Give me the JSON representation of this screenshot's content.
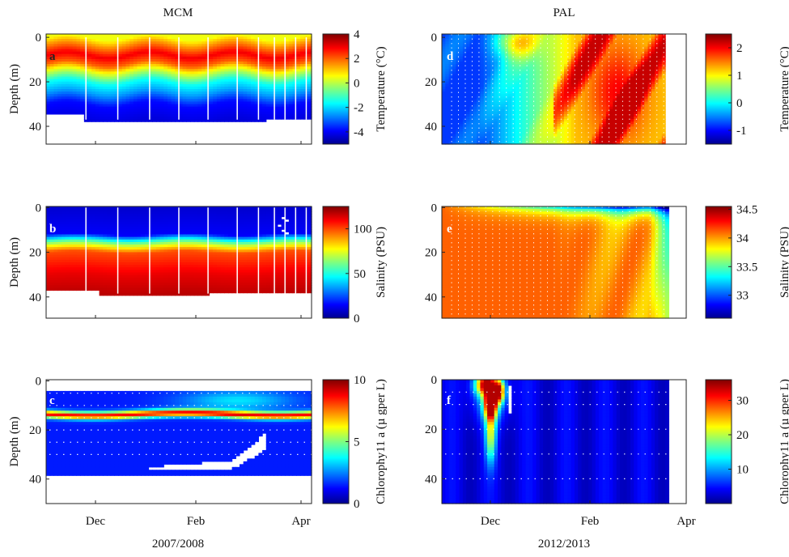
{
  "column_titles": [
    "MCM",
    "PAL"
  ],
  "x_period_labels": [
    "2007/2008",
    "2012/2013"
  ],
  "chart_data": [
    {
      "type": "heatmap",
      "panel": "a",
      "column": "MCM",
      "ylabel": "Depth (m)",
      "yticks": [
        "0",
        "20",
        "40"
      ],
      "ylim": [
        -1.5,
        48
      ],
      "y_reversed": true,
      "xticks": [
        "Dec",
        "Feb",
        "Apr"
      ],
      "show_xticklabels": false,
      "colorbar": {
        "label": "Temperature (°C)",
        "range": [
          -5,
          4
        ],
        "ticks": [
          "4",
          "2",
          "0",
          "-2",
          "-4"
        ],
        "colormap": "jet"
      },
      "depth_profile": {
        "depth": [
          0,
          3,
          8,
          12,
          15,
          20,
          25,
          30,
          38
        ],
        "value": [
          0.5,
          1.5,
          3.0,
          2.0,
          0.5,
          -1.5,
          -2.5,
          -3.8,
          -4.2
        ]
      }
    },
    {
      "type": "heatmap",
      "panel": "b",
      "column": "MCM",
      "ylabel": "Depth (m)",
      "yticks": [
        "0",
        "20",
        "40"
      ],
      "ylim": [
        -0.5,
        49.5
      ],
      "y_reversed": true,
      "xticks": [
        "Dec",
        "Feb",
        "Apr"
      ],
      "show_xticklabels": false,
      "colorbar": {
        "label": "Salinity (PSU)",
        "range": [
          0,
          125
        ],
        "ticks": [
          "100",
          "50",
          "0"
        ],
        "colormap": "jet"
      },
      "depth_profile": {
        "depth": [
          0,
          12,
          15,
          17,
          20,
          30,
          39
        ],
        "value": [
          10,
          15,
          55,
          75,
          100,
          112,
          118
        ]
      }
    },
    {
      "type": "heatmap",
      "panel": "c",
      "column": "MCM",
      "ylabel": "Depth (m)",
      "yticks": [
        "0",
        "20",
        "40"
      ],
      "ylim": [
        -0.5,
        50
      ],
      "y_reversed": true,
      "xticks": [
        "Dec",
        "Feb",
        "Apr"
      ],
      "show_xticklabels": true,
      "colorbar": {
        "label": "Chlorophy11 a (µ gper L)",
        "range": [
          0,
          10
        ],
        "ticks": [
          "10",
          "5",
          "0"
        ],
        "colormap": "jet"
      },
      "depth_profile": {
        "depth": [
          5,
          10,
          13.5,
          17,
          38
        ],
        "value": [
          1.5,
          2,
          9,
          2,
          1.5
        ]
      }
    },
    {
      "type": "heatmap",
      "panel": "d",
      "column": "PAL",
      "ylabel": "",
      "yticks": [
        "0",
        "20",
        "40"
      ],
      "ylim": [
        -1.5,
        48
      ],
      "y_reversed": true,
      "xticks": [
        "Dec",
        "Feb",
        "Apr"
      ],
      "show_xticklabels": false,
      "colorbar": {
        "label": "Temperature (°C)",
        "range": [
          -1.5,
          2.5
        ],
        "ticks": [
          "2",
          "1",
          "0",
          "-1"
        ],
        "colormap": "jet"
      }
    },
    {
      "type": "heatmap",
      "panel": "e",
      "column": "PAL",
      "ylabel": "",
      "yticks": [
        "0",
        "20",
        "40"
      ],
      "ylim": [
        -0.5,
        49.5
      ],
      "y_reversed": true,
      "xticks": [
        "Dec",
        "Feb",
        "Apr"
      ],
      "show_xticklabels": false,
      "colorbar": {
        "label": "Salinity (PSU)",
        "range": [
          32.6,
          34.55
        ],
        "ticks": [
          "34.5",
          "34",
          "33.5",
          "33"
        ],
        "colormap": "jet"
      }
    },
    {
      "type": "heatmap",
      "panel": "f",
      "column": "PAL",
      "ylabel": "",
      "yticks": [
        "0",
        "20",
        "40"
      ],
      "ylim": [
        0,
        50
      ],
      "y_reversed": true,
      "xticks": [
        "Dec",
        "Feb",
        "Apr"
      ],
      "show_xticklabels": true,
      "colorbar": {
        "label": "Chlorophy11 a (µ gper L)",
        "range": [
          0,
          36
        ],
        "ticks": [
          "30",
          "20",
          "10"
        ],
        "colormap": "jet"
      }
    }
  ]
}
